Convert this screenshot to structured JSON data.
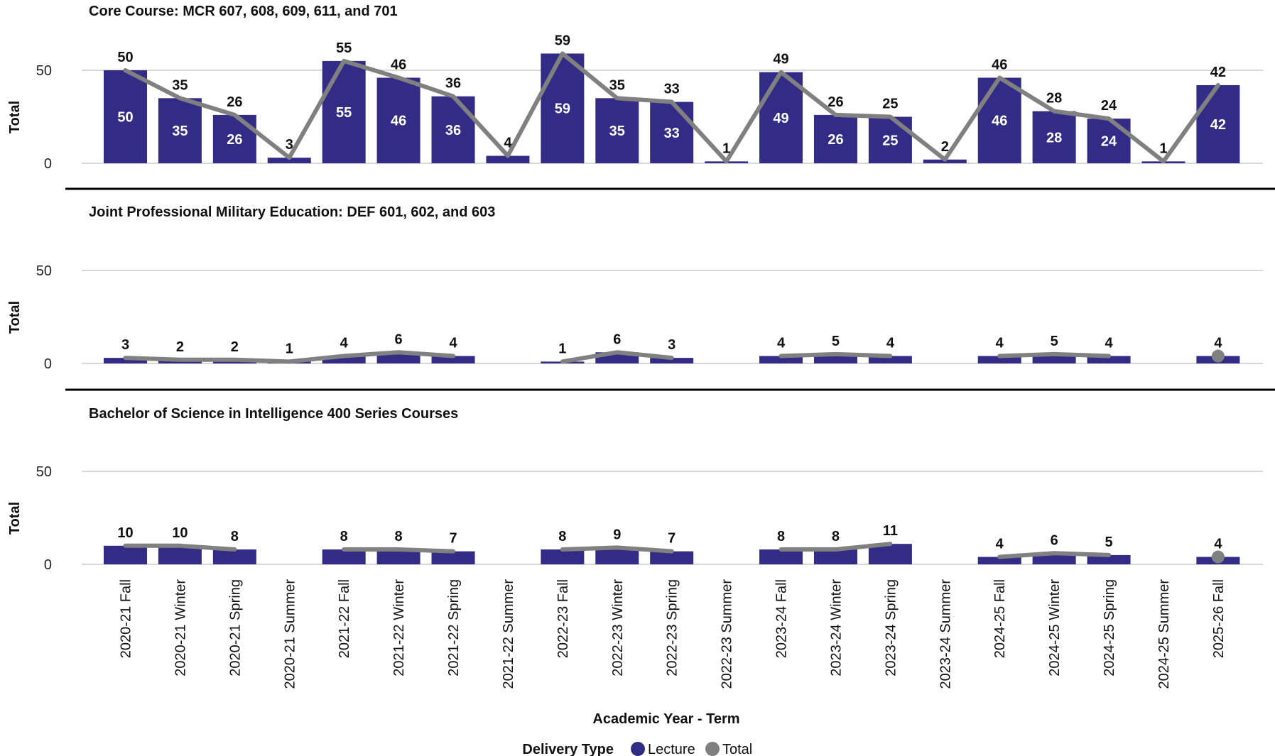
{
  "chart_data": {
    "type": "bar",
    "colors": {
      "lecture": "#332c87",
      "total": "#808080",
      "grid": "#cccccc",
      "separator": "#000000"
    },
    "categories": [
      "2020-21 Fall",
      "2020-21 Winter",
      "2020-21 Spring",
      "2020-21 Summer",
      "2021-22 Fall",
      "2021-22 Winter",
      "2021-22 Spring",
      "2021-22 Summer",
      "2022-23 Fall",
      "2022-23 Winter",
      "2022-23 Spring",
      "2022-23 Summer",
      "2023-24 Fall",
      "2023-24 Winter",
      "2023-24 Spring",
      "2023-24 Summer",
      "2024-25 Fall",
      "2024-25 Winter",
      "2024-25 Spring",
      "2024-25 Summer",
      "2025-26 Fall"
    ],
    "xlabel": "Academic Year - Term",
    "ylabel": "Total",
    "ylim": [
      0,
      70
    ],
    "yticks": [
      "0",
      "50"
    ],
    "legend": {
      "title": "Delivery Type",
      "placement": "bottom-center",
      "items": [
        "Lecture",
        "Total"
      ]
    },
    "panels": [
      {
        "title": "Core Course: MCR 607, 608, 609, 611, and 701",
        "lecture": [
          50,
          35,
          26,
          3,
          55,
          46,
          36,
          4,
          59,
          35,
          33,
          1,
          49,
          26,
          25,
          2,
          46,
          28,
          24,
          1,
          42
        ],
        "total": [
          50,
          35,
          26,
          3,
          55,
          46,
          36,
          4,
          59,
          35,
          33,
          1,
          49,
          26,
          25,
          2,
          46,
          28,
          24,
          1,
          42
        ],
        "inside_labels": true
      },
      {
        "title": "Joint Professional Military Education: DEF 601, 602, and 603",
        "lecture": [
          3,
          2,
          2,
          1,
          4,
          6,
          4,
          null,
          1,
          6,
          3,
          null,
          4,
          5,
          4,
          null,
          4,
          5,
          4,
          null,
          4
        ],
        "total": [
          3,
          2,
          2,
          1,
          4,
          6,
          4,
          null,
          1,
          6,
          3,
          null,
          4,
          5,
          4,
          null,
          4,
          5,
          4,
          null,
          4
        ],
        "inside_labels": false
      },
      {
        "title": "Bachelor of Science in Intelligence 400 Series Courses",
        "lecture": [
          10,
          10,
          8,
          null,
          8,
          8,
          7,
          null,
          8,
          9,
          7,
          null,
          8,
          8,
          11,
          null,
          4,
          6,
          5,
          null,
          4
        ],
        "total": [
          10,
          10,
          8,
          null,
          8,
          8,
          7,
          null,
          8,
          9,
          7,
          null,
          8,
          8,
          11,
          null,
          4,
          6,
          5,
          null,
          4
        ],
        "inside_labels": true
      }
    ]
  }
}
